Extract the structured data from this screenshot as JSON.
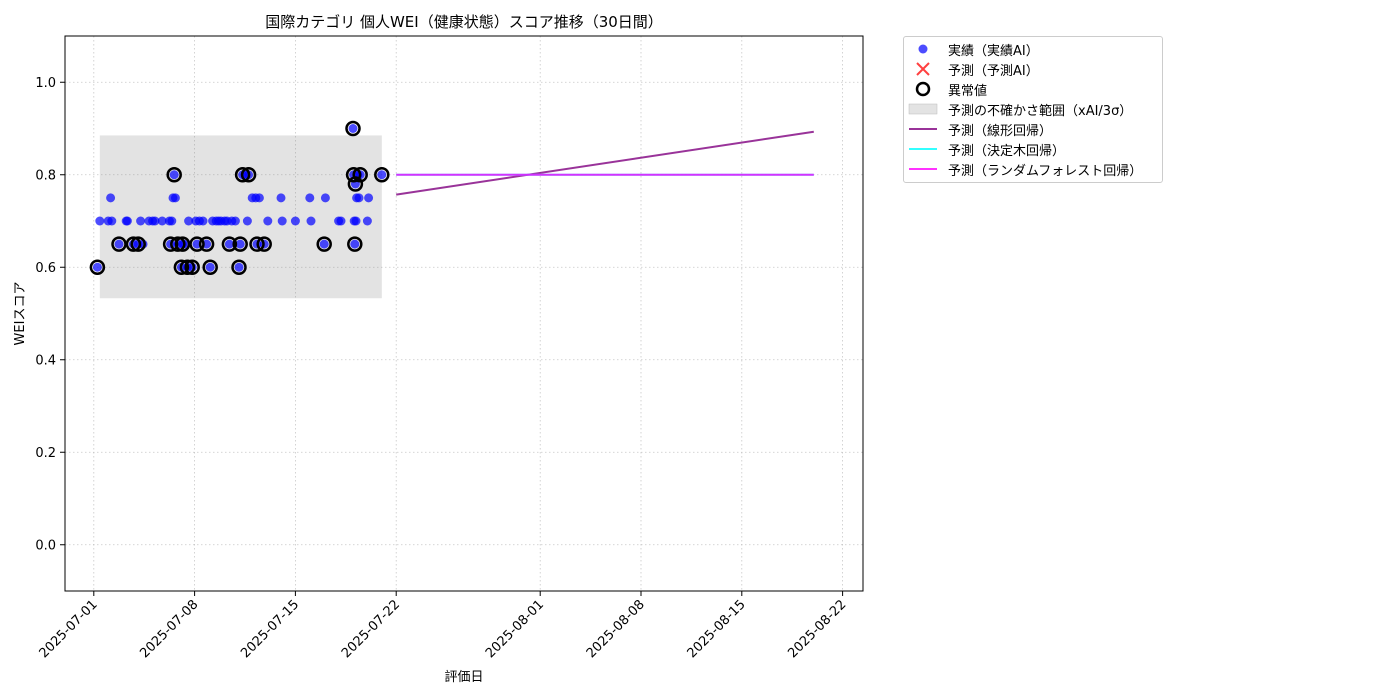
{
  "chart_data": {
    "type": "scatter",
    "title": "国際カテゴリ 個人WEI（健康状態）スコア推移（30日間）",
    "xlabel": "評価日",
    "ylabel": "WEIスコア",
    "xlim": [
      "2025-06-29T00:00",
      "2025-08-23T10:00"
    ],
    "ylim": [
      -0.1,
      1.1
    ],
    "grid": true,
    "legend_position": "outside-top-right",
    "x_ticks": [
      "2025-07-01",
      "2025-07-08",
      "2025-07-15",
      "2025-07-22",
      "2025-08-01",
      "2025-08-08",
      "2025-08-15",
      "2025-08-22"
    ],
    "y_ticks": [
      "0.0",
      "0.2",
      "0.4",
      "0.6",
      "0.8",
      "1.0"
    ],
    "series": [
      {
        "name": "実績（実績AI）",
        "kind": "scatter",
        "color": "#0000ff",
        "points": [
          [
            "2025-07-01T06:00",
            0.6
          ],
          [
            "2025-07-01T10:00",
            0.7
          ],
          [
            "2025-07-02T00:00",
            0.7
          ],
          [
            "2025-07-02T04:00",
            0.75
          ],
          [
            "2025-07-02T06:00",
            0.7
          ],
          [
            "2025-07-02T18:00",
            0.65
          ],
          [
            "2025-07-03T06:00",
            0.7
          ],
          [
            "2025-07-03T08:00",
            0.7
          ],
          [
            "2025-07-03T18:00",
            0.65
          ],
          [
            "2025-07-04T02:00",
            0.65
          ],
          [
            "2025-07-04T06:00",
            0.7
          ],
          [
            "2025-07-04T10:00",
            0.65
          ],
          [
            "2025-07-04T20:00",
            0.7
          ],
          [
            "2025-07-05T02:00",
            0.7
          ],
          [
            "2025-07-05T06:00",
            0.7
          ],
          [
            "2025-07-05T18:00",
            0.7
          ],
          [
            "2025-07-06T06:00",
            0.7
          ],
          [
            "2025-07-06T08:00",
            0.65
          ],
          [
            "2025-07-06T10:00",
            0.7
          ],
          [
            "2025-07-06T12:00",
            0.75
          ],
          [
            "2025-07-06T14:00",
            0.8
          ],
          [
            "2025-07-06T16:00",
            0.75
          ],
          [
            "2025-07-06T20:00",
            0.65
          ],
          [
            "2025-07-07T02:00",
            0.6
          ],
          [
            "2025-07-07T04:00",
            0.65
          ],
          [
            "2025-07-07T06:00",
            0.65
          ],
          [
            "2025-07-07T12:00",
            0.6
          ],
          [
            "2025-07-07T14:00",
            0.7
          ],
          [
            "2025-07-07T20:00",
            0.6
          ],
          [
            "2025-07-08T02:00",
            0.7
          ],
          [
            "2025-07-08T04:00",
            0.65
          ],
          [
            "2025-07-08T08:00",
            0.7
          ],
          [
            "2025-07-08T14:00",
            0.7
          ],
          [
            "2025-07-08T20:00",
            0.65
          ],
          [
            "2025-07-09T02:00",
            0.6
          ],
          [
            "2025-07-09T06:00",
            0.7
          ],
          [
            "2025-07-09T12:00",
            0.7
          ],
          [
            "2025-07-09T16:00",
            0.7
          ],
          [
            "2025-07-09T20:00",
            0.7
          ],
          [
            "2025-07-10T02:00",
            0.7
          ],
          [
            "2025-07-10T06:00",
            0.7
          ],
          [
            "2025-07-10T10:00",
            0.65
          ],
          [
            "2025-07-10T14:00",
            0.7
          ],
          [
            "2025-07-10T20:00",
            0.7
          ],
          [
            "2025-07-11T02:00",
            0.6
          ],
          [
            "2025-07-11T04:00",
            0.65
          ],
          [
            "2025-07-11T08:00",
            0.8
          ],
          [
            "2025-07-11T12:00",
            0.8
          ],
          [
            "2025-07-11T16:00",
            0.7
          ],
          [
            "2025-07-11T18:00",
            0.8
          ],
          [
            "2025-07-12T00:00",
            0.75
          ],
          [
            "2025-07-12T06:00",
            0.75
          ],
          [
            "2025-07-12T08:00",
            0.65
          ],
          [
            "2025-07-12T12:00",
            0.75
          ],
          [
            "2025-07-12T20:00",
            0.65
          ],
          [
            "2025-07-13T02:00",
            0.7
          ],
          [
            "2025-07-14T00:00",
            0.75
          ],
          [
            "2025-07-14T02:00",
            0.7
          ],
          [
            "2025-07-15T00:00",
            0.7
          ],
          [
            "2025-07-16T00:00",
            0.75
          ],
          [
            "2025-07-16T02:00",
            0.7
          ],
          [
            "2025-07-17T00:00",
            0.65
          ],
          [
            "2025-07-17T02:00",
            0.75
          ],
          [
            "2025-07-18T00:00",
            0.7
          ],
          [
            "2025-07-18T04:00",
            0.7
          ],
          [
            "2025-07-19T00:00",
            0.9
          ],
          [
            "2025-07-19T01:00",
            0.8
          ],
          [
            "2025-07-19T02:00",
            0.7
          ],
          [
            "2025-07-19T03:00",
            0.65
          ],
          [
            "2025-07-19T04:00",
            0.78
          ],
          [
            "2025-07-19T05:00",
            0.7
          ],
          [
            "2025-07-19T06:00",
            0.75
          ],
          [
            "2025-07-19T08:00",
            0.8
          ],
          [
            "2025-07-19T10:00",
            0.75
          ],
          [
            "2025-07-19T12:00",
            0.8
          ],
          [
            "2025-07-20T00:00",
            0.7
          ],
          [
            "2025-07-20T02:00",
            0.75
          ],
          [
            "2025-07-21T00:00",
            0.8
          ]
        ]
      },
      {
        "name": "予測（予測AI）",
        "kind": "scatter-x",
        "color": "#ff0000",
        "points": []
      },
      {
        "name": "異常値",
        "kind": "outlier-ring",
        "color": "#000000",
        "points": [
          [
            "2025-07-01T06:00",
            0.6
          ],
          [
            "2025-07-02T18:00",
            0.65
          ],
          [
            "2025-07-03T18:00",
            0.65
          ],
          [
            "2025-07-04T02:00",
            0.65
          ],
          [
            "2025-07-06T08:00",
            0.65
          ],
          [
            "2025-07-06T14:00",
            0.8
          ],
          [
            "2025-07-06T20:00",
            0.65
          ],
          [
            "2025-07-07T02:00",
            0.6
          ],
          [
            "2025-07-07T04:00",
            0.65
          ],
          [
            "2025-07-07T12:00",
            0.6
          ],
          [
            "2025-07-07T20:00",
            0.6
          ],
          [
            "2025-07-08T04:00",
            0.65
          ],
          [
            "2025-07-08T20:00",
            0.65
          ],
          [
            "2025-07-09T02:00",
            0.6
          ],
          [
            "2025-07-10T10:00",
            0.65
          ],
          [
            "2025-07-11T02:00",
            0.6
          ],
          [
            "2025-07-11T04:00",
            0.65
          ],
          [
            "2025-07-11T08:00",
            0.8
          ],
          [
            "2025-07-11T18:00",
            0.8
          ],
          [
            "2025-07-12T08:00",
            0.65
          ],
          [
            "2025-07-12T20:00",
            0.65
          ],
          [
            "2025-07-17T00:00",
            0.65
          ],
          [
            "2025-07-19T00:00",
            0.9
          ],
          [
            "2025-07-19T01:00",
            0.8
          ],
          [
            "2025-07-19T03:00",
            0.65
          ],
          [
            "2025-07-19T04:00",
            0.78
          ],
          [
            "2025-07-19T12:00",
            0.8
          ],
          [
            "2025-07-21T00:00",
            0.8
          ]
        ]
      },
      {
        "name": "予測の不確かさ範囲（xAI/3σ）",
        "kind": "band",
        "color": "#808080",
        "x_range": [
          "2025-07-01T10:00",
          "2025-07-21T00:00"
        ],
        "y_range": [
          0.533,
          0.885
        ]
      },
      {
        "name": "予測（線形回帰）",
        "kind": "line",
        "color": "#800080",
        "points": [
          [
            "2025-07-22T00:00",
            0.757
          ],
          [
            "2025-08-20T00:00",
            0.893
          ]
        ]
      },
      {
        "name": "予測（決定木回帰）",
        "kind": "line",
        "color": "#00ffff",
        "points": [
          [
            "2025-07-22T00:00",
            0.8
          ],
          [
            "2025-08-20T00:00",
            0.8
          ]
        ]
      },
      {
        "name": "予測（ランダムフォレスト回帰）",
        "kind": "line",
        "color": "#ff00ff",
        "points": [
          [
            "2025-07-22T00:00",
            0.8
          ],
          [
            "2025-08-20T00:00",
            0.8
          ]
        ]
      }
    ]
  }
}
